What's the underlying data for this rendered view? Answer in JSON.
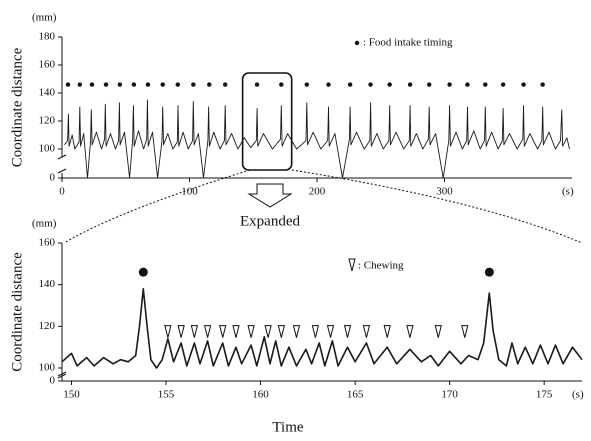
{
  "chart_data": [
    {
      "type": "line",
      "ylabel": "Coordinate distance",
      "yunit": "(mm)",
      "xunit": "(s)",
      "color": "#1a1a1a",
      "xlim": [
        0,
        400
      ],
      "xticks": [
        0,
        100,
        200,
        300
      ],
      "ylim": [
        0,
        180
      ],
      "yticks": [
        0,
        100,
        120,
        140,
        160,
        180
      ],
      "y_break": true,
      "x": [
        2,
        4.4,
        5,
        5.6,
        8,
        10,
        13.4,
        14,
        14.6,
        17,
        20,
        22.4,
        23,
        23.6,
        27,
        31,
        33.4,
        34,
        34.6,
        38,
        42,
        44.4,
        45,
        45.6,
        49,
        53,
        55.4,
        56,
        56.6,
        60,
        64,
        66.4,
        67,
        67.6,
        71,
        75,
        78.4,
        79,
        79.6,
        83,
        87,
        90.4,
        91,
        91.6,
        95,
        99,
        102.4,
        103,
        103.6,
        107,
        111,
        114.4,
        115,
        115.6,
        119,
        124,
        127.4,
        128,
        128.6,
        133,
        138,
        143,
        148,
        152.4,
        153,
        153.6,
        158,
        165,
        171.4,
        172,
        172.6,
        177,
        184,
        191.4,
        192,
        192.6,
        197,
        203,
        208.4,
        209,
        209.6,
        214,
        220,
        225.4,
        226,
        226.6,
        231,
        237,
        241.4,
        242,
        242.6,
        247,
        252,
        256.4,
        257,
        257.6,
        262,
        268,
        272.4,
        273,
        273.6,
        278,
        283,
        287.4,
        288,
        288.6,
        293,
        299,
        303.4,
        304,
        304.6,
        309,
        314,
        317.4,
        318,
        318.6,
        323,
        328,
        331.4,
        332,
        332.6,
        337,
        342,
        345.4,
        346,
        346.6,
        351,
        357,
        361.4,
        362,
        362.6,
        367,
        373,
        376.4,
        377,
        377.6,
        382,
        387,
        391,
        392,
        392.6,
        396,
        398
      ],
      "values": [
        103,
        106,
        125,
        102,
        110,
        100,
        105,
        130,
        102,
        111,
        99,
        106,
        128,
        103,
        112,
        100,
        107,
        132,
        102,
        111,
        100,
        106,
        133,
        103,
        112,
        99,
        106,
        131,
        102,
        113,
        100,
        107,
        135,
        102,
        112,
        99,
        106,
        130,
        103,
        111,
        100,
        105,
        131,
        102,
        112,
        100,
        106,
        134,
        103,
        111,
        99,
        106,
        130,
        102,
        112,
        100,
        106,
        131,
        103,
        111,
        100,
        108,
        101,
        106,
        129,
        102,
        111,
        100,
        107,
        131,
        102,
        111,
        100,
        106,
        133,
        103,
        112,
        100,
        106,
        130,
        102,
        111,
        99,
        107,
        130,
        103,
        112,
        100,
        106,
        133,
        102,
        111,
        100,
        106,
        131,
        103,
        112,
        100,
        106,
        131,
        102,
        111,
        100,
        107,
        130,
        103,
        111,
        99,
        106,
        131,
        102,
        112,
        100,
        106,
        130,
        103,
        113,
        100,
        106,
        130,
        102,
        112,
        100,
        106,
        129,
        103,
        111,
        100,
        107,
        131,
        102,
        111,
        100,
        106,
        130,
        103,
        112,
        100,
        106,
        128,
        102,
        108,
        100
      ],
      "markers": {
        "name": ": Food intake timing",
        "x": [
          4.7,
          14,
          23.5,
          34.5,
          45.4,
          56.4,
          67.4,
          79,
          90.8,
          103,
          115.5,
          128,
          153,
          172,
          192,
          209,
          226,
          242,
          257,
          273,
          288,
          304,
          318,
          332,
          346,
          362,
          377
        ],
        "y": [
          146,
          146,
          146,
          146,
          146,
          146,
          146,
          146,
          146,
          146,
          146,
          146,
          146,
          146,
          146,
          146,
          146,
          146,
          146,
          146,
          146,
          146,
          146,
          146,
          146,
          146,
          146
        ]
      }
    },
    {
      "type": "line",
      "ylabel": "Coordinate distance",
      "yunit": "(mm)",
      "xunit": "(s)",
      "xlabel": "Time",
      "annotation": "Expanded",
      "color": "#1a1a1a",
      "xlim": [
        149.5,
        177
      ],
      "xticks": [
        150,
        155,
        160,
        165,
        170,
        175
      ],
      "ylim": [
        0,
        160
      ],
      "yticks": [
        0,
        100,
        120,
        140,
        160
      ],
      "y_break": true,
      "x": [
        149.5,
        150,
        150.3,
        150.8,
        151.2,
        151.7,
        152.2,
        152.6,
        153,
        153.4,
        153.6,
        153.8,
        154,
        154.2,
        154.5,
        154.8,
        155.1,
        155.4,
        155.8,
        156.1,
        156.5,
        156.8,
        157.2,
        157.5,
        158,
        158.3,
        158.7,
        159,
        159.5,
        159.8,
        160.2,
        160.5,
        160.8,
        161.1,
        161.5,
        161.9,
        162.4,
        162.7,
        163.1,
        163.4,
        163.8,
        164.1,
        164.6,
        165,
        165.6,
        166,
        166.7,
        167.2,
        167.9,
        168.5,
        169,
        169.4,
        170,
        170.6,
        171,
        171.5,
        171.8,
        172.1,
        172.3,
        172.6,
        173,
        173.3,
        173.6,
        174,
        174.4,
        174.8,
        175.2,
        175.6,
        176,
        176.5,
        177
      ],
      "values": [
        103,
        107,
        101,
        105,
        101,
        105,
        102,
        104,
        103,
        106,
        120,
        138,
        120,
        104,
        100,
        104,
        114,
        103,
        112,
        101,
        112,
        102,
        113,
        101,
        112,
        101,
        110,
        102,
        111,
        101,
        115,
        102,
        113,
        101,
        110,
        101,
        109,
        102,
        112,
        101,
        113,
        101,
        110,
        103,
        112,
        102,
        110,
        102,
        109,
        103,
        106,
        101,
        108,
        102,
        106,
        104,
        112,
        136,
        118,
        104,
        101,
        112,
        102,
        110,
        102,
        111,
        102,
        111,
        102,
        110,
        104
      ],
      "dots": {
        "x": [
          153.8,
          172.1
        ],
        "y": [
          146,
          146
        ]
      },
      "markers": {
        "name": ": Chewing",
        "x": [
          155.1,
          155.8,
          156.5,
          157.2,
          158,
          158.7,
          159.5,
          160.4,
          161.1,
          161.9,
          162.9,
          163.7,
          164.6,
          165.6,
          166.7,
          167.9,
          169.4,
          170.8
        ],
        "y": [
          117,
          117,
          117,
          117,
          117,
          117,
          117,
          117,
          117,
          117,
          117,
          117,
          117,
          117,
          117,
          117,
          117,
          117
        ]
      }
    }
  ]
}
